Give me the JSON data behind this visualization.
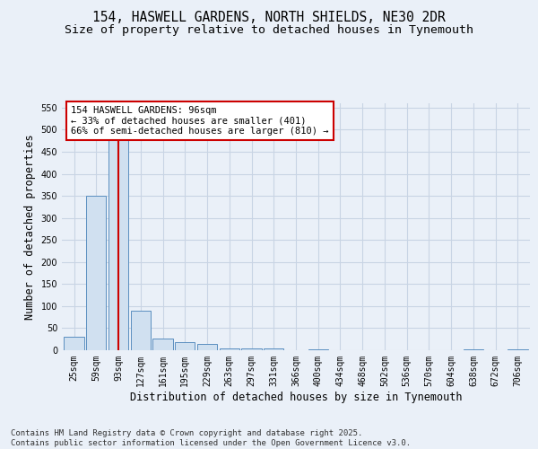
{
  "title_line1": "154, HASWELL GARDENS, NORTH SHIELDS, NE30 2DR",
  "title_line2": "Size of property relative to detached houses in Tynemouth",
  "xlabel": "Distribution of detached houses by size in Tynemouth",
  "ylabel": "Number of detached properties",
  "bar_color": "#d0e0f0",
  "bar_edge_color": "#5a8fc0",
  "categories": [
    "25sqm",
    "59sqm",
    "93sqm",
    "127sqm",
    "161sqm",
    "195sqm",
    "229sqm",
    "263sqm",
    "297sqm",
    "331sqm",
    "366sqm",
    "400sqm",
    "434sqm",
    "468sqm",
    "502sqm",
    "536sqm",
    "570sqm",
    "604sqm",
    "638sqm",
    "672sqm",
    "706sqm"
  ],
  "values": [
    30,
    350,
    500,
    90,
    27,
    18,
    15,
    5,
    5,
    5,
    0,
    2,
    0,
    0,
    0,
    0,
    0,
    0,
    3,
    0,
    2
  ],
  "property_bin_index": 2,
  "vline_color": "#cc0000",
  "annotation_text": "154 HASWELL GARDENS: 96sqm\n← 33% of detached houses are smaller (401)\n66% of semi-detached houses are larger (810) →",
  "annotation_box_color": "#ffffff",
  "annotation_box_edge": "#cc0000",
  "ylim": [
    0,
    560
  ],
  "yticks": [
    0,
    50,
    100,
    150,
    200,
    250,
    300,
    350,
    400,
    450,
    500,
    550
  ],
  "background_color": "#eaf0f8",
  "grid_color": "#c8d4e4",
  "footer_line1": "Contains HM Land Registry data © Crown copyright and database right 2025.",
  "footer_line2": "Contains public sector information licensed under the Open Government Licence v3.0.",
  "title_fontsize": 10.5,
  "subtitle_fontsize": 9.5,
  "axis_label_fontsize": 8.5,
  "tick_fontsize": 7,
  "annotation_fontsize": 7.5,
  "footer_fontsize": 6.5
}
